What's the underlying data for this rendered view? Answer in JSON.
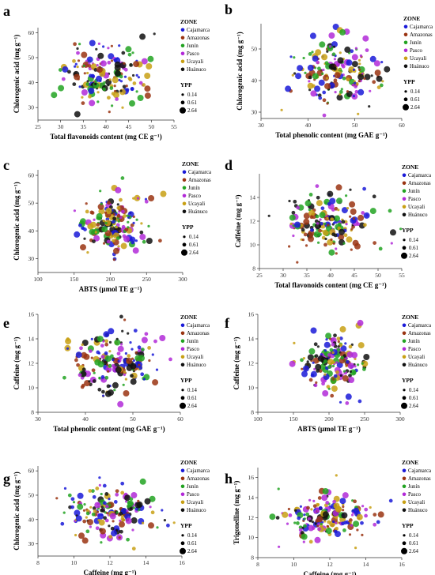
{
  "figure": {
    "zone_colors": {
      "Cajamarca": "#1a1ad8",
      "Amazonas": "#9a3412",
      "Junín": "#22a322",
      "Pasco": "#b22ad8",
      "Ucayali": "#c8a014",
      "Huánuco": "#111111"
    },
    "legend": {
      "zone_title": "ZONE",
      "zones": [
        "Cajamarca",
        "Amazonas",
        "Junín",
        "Pasco",
        "Ucayali",
        "Huánuco"
      ],
      "ypp_title": "YPP",
      "sizes": [
        "0.14",
        "0.61",
        "2.64"
      ]
    }
  },
  "chart_data": [
    {
      "panel": "a",
      "type": "scatter",
      "xlabel": "Total flavonoids content (mg CE g⁻¹)",
      "ylabel": "Chlorogenic acid (mg g⁻¹)",
      "xlim": [
        25,
        55
      ],
      "ylim": [
        25,
        62
      ],
      "xticks": [
        25,
        30,
        35,
        40,
        45,
        50,
        55
      ],
      "yticks": [
        30,
        40,
        50,
        60
      ],
      "x_mean": 40,
      "x_sd": 4.5,
      "y_mean": 43,
      "y_sd": 5.5,
      "n_points": 180,
      "seed": 11,
      "hue": "ZONE",
      "size": "YPP"
    },
    {
      "panel": "b",
      "type": "scatter",
      "xlabel": "Total phenolic content (mg GAE g⁻¹)",
      "ylabel": "Chlorogenic acid (mg g⁻¹)",
      "xlim": [
        30,
        60
      ],
      "ylim": [
        28,
        58
      ],
      "xticks": [
        30,
        40,
        50,
        60
      ],
      "yticks": [
        30,
        40,
        50
      ],
      "x_mean": 46,
      "x_sd": 4.5,
      "y_mean": 43,
      "y_sd": 5.5,
      "n_points": 180,
      "seed": 23,
      "hue": "ZONE",
      "size": "YPP"
    },
    {
      "panel": "c",
      "type": "scatter",
      "xlabel": "ABTS (µmol TE g⁻¹)",
      "ylabel": "Chlorogenic acid (mg g⁻¹)",
      "xlim": [
        100,
        300
      ],
      "ylim": [
        25,
        62
      ],
      "xticks": [
        100,
        150,
        200,
        250,
        300
      ],
      "yticks": [
        30,
        40,
        50,
        60
      ],
      "x_mean": 205,
      "x_sd": 22,
      "y_mean": 43,
      "y_sd": 5.5,
      "n_points": 180,
      "seed": 37,
      "hue": "ZONE",
      "size": "YPP"
    },
    {
      "panel": "d",
      "type": "scatter",
      "xlabel": "Total flavonoids content (mg CE g⁻¹)",
      "ylabel": "Caffeine (mg g⁻¹)",
      "xlim": [
        25,
        55
      ],
      "ylim": [
        8,
        16
      ],
      "xticks": [
        25,
        30,
        35,
        40,
        45,
        50,
        55
      ],
      "yticks": [
        8,
        10,
        12,
        14
      ],
      "x_mean": 40,
      "x_sd": 4.5,
      "y_mean": 11.9,
      "y_sd": 1.2,
      "n_points": 180,
      "seed": 41,
      "hue": "ZONE",
      "size": "YPP"
    },
    {
      "panel": "e",
      "type": "scatter",
      "xlabel": "Total phenolic content (mg GAE g⁻¹)",
      "ylabel": "Caffeine (mg g⁻¹)",
      "xlim": [
        30,
        60
      ],
      "ylim": [
        8,
        16
      ],
      "xticks": [
        30,
        40,
        50,
        60
      ],
      "yticks": [
        8,
        10,
        12,
        14,
        16
      ],
      "x_mean": 46,
      "x_sd": 4.5,
      "y_mean": 11.9,
      "y_sd": 1.2,
      "n_points": 180,
      "seed": 53,
      "hue": "ZONE",
      "size": "YPP"
    },
    {
      "panel": "f",
      "type": "scatter",
      "xlabel": "ABTS (µmol TE g⁻¹)",
      "ylabel": "Caffeine (mg g⁻¹)",
      "xlim": [
        100,
        300
      ],
      "ylim": [
        8,
        16
      ],
      "xticks": [
        100,
        150,
        200,
        250,
        300
      ],
      "yticks": [
        8,
        10,
        12,
        14,
        16
      ],
      "x_mean": 210,
      "x_sd": 22,
      "y_mean": 11.9,
      "y_sd": 1.2,
      "n_points": 180,
      "seed": 67,
      "hue": "ZONE",
      "size": "YPP"
    },
    {
      "panel": "g",
      "type": "scatter",
      "xlabel": "Caffeine (mg g⁻¹)",
      "ylabel": "Chlorogenic acid (mg g⁻¹)",
      "xlim": [
        8,
        16
      ],
      "ylim": [
        25,
        62
      ],
      "xticks": [
        8,
        10,
        12,
        14,
        16
      ],
      "yticks": [
        30,
        40,
        50,
        60
      ],
      "x_mean": 11.9,
      "x_sd": 1.2,
      "y_mean": 43,
      "y_sd": 5.5,
      "n_points": 180,
      "seed": 79,
      "hue": "ZONE",
      "size": "YPP"
    },
    {
      "panel": "h",
      "type": "scatter",
      "xlabel": "Caffeine (mg g⁻¹)",
      "ylabel": "Trigonelline (mg g⁻¹)",
      "xlim": [
        8,
        16
      ],
      "ylim": [
        8,
        17
      ],
      "xticks": [
        8,
        10,
        12,
        14,
        16
      ],
      "yticks": [
        8,
        10,
        12,
        14,
        16
      ],
      "x_mean": 11.9,
      "x_sd": 1.2,
      "y_mean": 12,
      "y_sd": 1.3,
      "n_points": 180,
      "seed": 97,
      "hue": "ZONE",
      "size": "YPP"
    }
  ]
}
